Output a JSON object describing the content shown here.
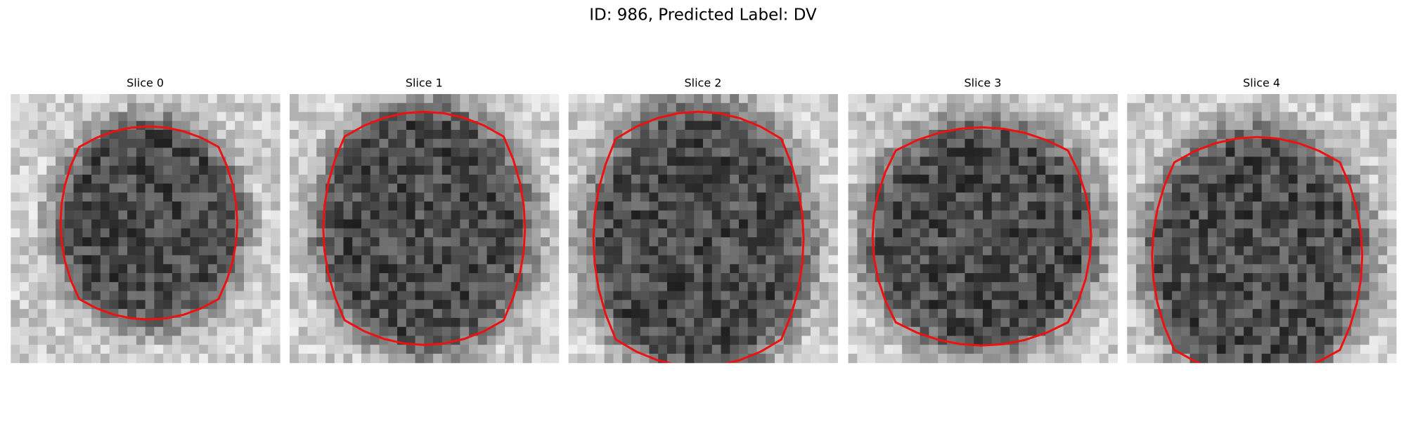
{
  "title": "ID: 986, Predicted Label: DV",
  "panels": [
    {
      "title": "Slice 0"
    },
    {
      "title": "Slice 1"
    },
    {
      "title": "Slice 2"
    },
    {
      "title": "Slice 3"
    },
    {
      "title": "Slice 4"
    }
  ]
}
